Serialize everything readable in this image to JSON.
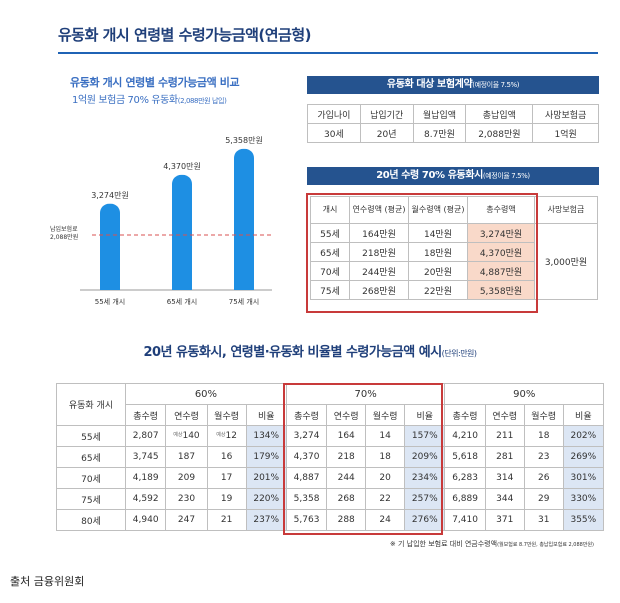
{
  "main_title": "유동화 개시 연령별 수령가능금액(연금형)",
  "colors": {
    "navy": "#25538f",
    "bar": "#1e8fe3",
    "highlight": "#f9d9c9",
    "ratio_bg": "#dce6f4",
    "red_box": "#c83a3a",
    "dashed": "#d85050"
  },
  "chart_data": {
    "type": "bar",
    "title": "유동화 개시 연령별 수령가능금액 비교",
    "subtitle": "1억원 보험금 70% 유동화",
    "subtitle_note": "(2,088만원 납입)",
    "categories": [
      "55세 개시",
      "65세 개시",
      "75세 개시"
    ],
    "values": [
      3274,
      4370,
      5358
    ],
    "data_labels": [
      "3,274만원",
      "4,370만원",
      "5,358만원"
    ],
    "reference_line": {
      "value": 2088,
      "label_line1": "납입보험료",
      "label_line2": "2,088만원"
    },
    "ylim": [
      0,
      6000
    ],
    "xlabel": "",
    "ylabel": "",
    "grid": false
  },
  "contract": {
    "band": "유동화 대상 보험계약",
    "band_note": "(예정이율 7.5%)",
    "headers": [
      "가입나이",
      "납입기간",
      "월납입액",
      "총납입액",
      "사망보험금"
    ],
    "row": [
      "30세",
      "20년",
      "8.7만원",
      "2,088만원",
      "1억원"
    ]
  },
  "payout": {
    "band": "20년 수령 70% 유동화시",
    "band_note": "(예정이율 7.5%)",
    "headers": [
      "개시",
      "연수령액 (평균)",
      "월수령액 (평균)",
      "총수령액",
      "사망보험금"
    ],
    "rows": [
      [
        "55세",
        "164만원",
        "14만원",
        "3,274만원"
      ],
      [
        "65세",
        "218만원",
        "18만원",
        "4,370만원"
      ],
      [
        "70세",
        "244만원",
        "20만원",
        "4,887만원"
      ],
      [
        "75세",
        "268만원",
        "22만원",
        "5,358만원"
      ]
    ],
    "death_benefit": "3,000만원"
  },
  "rate_section": {
    "title": "20년 유동화시, 연령별·유동화 비율별 수령가능금액 예시",
    "unit": "(단위:만원)",
    "age_header": "유동화 개시",
    "groups": [
      "60%",
      "70%",
      "90%"
    ],
    "sub_headers": [
      "총수령",
      "연수령",
      "월수령",
      "비율"
    ],
    "corner_note": "예상",
    "rows": [
      {
        "age": "55세",
        "cells": [
          "2,807",
          "140",
          "12",
          "134%",
          "3,274",
          "164",
          "14",
          "157%",
          "4,210",
          "211",
          "18",
          "202%"
        ]
      },
      {
        "age": "65세",
        "cells": [
          "3,745",
          "187",
          "16",
          "179%",
          "4,370",
          "218",
          "18",
          "209%",
          "5,618",
          "281",
          "23",
          "269%"
        ]
      },
      {
        "age": "70세",
        "cells": [
          "4,189",
          "209",
          "17",
          "201%",
          "4,887",
          "244",
          "20",
          "234%",
          "6,283",
          "314",
          "26",
          "301%"
        ]
      },
      {
        "age": "75세",
        "cells": [
          "4,592",
          "230",
          "19",
          "220%",
          "5,358",
          "268",
          "22",
          "257%",
          "6,889",
          "344",
          "29",
          "330%"
        ]
      },
      {
        "age": "80세",
        "cells": [
          "4,940",
          "247",
          "21",
          "237%",
          "5,763",
          "288",
          "24",
          "276%",
          "7,410",
          "371",
          "31",
          "355%"
        ]
      }
    ],
    "footnote": "※ 기 납입한 보험료 대비 연금수령액",
    "footnote_detail": "(월보험료 8.7만원, 총납입보험료 2,088만원)"
  },
  "source": "출처 금융위원회"
}
